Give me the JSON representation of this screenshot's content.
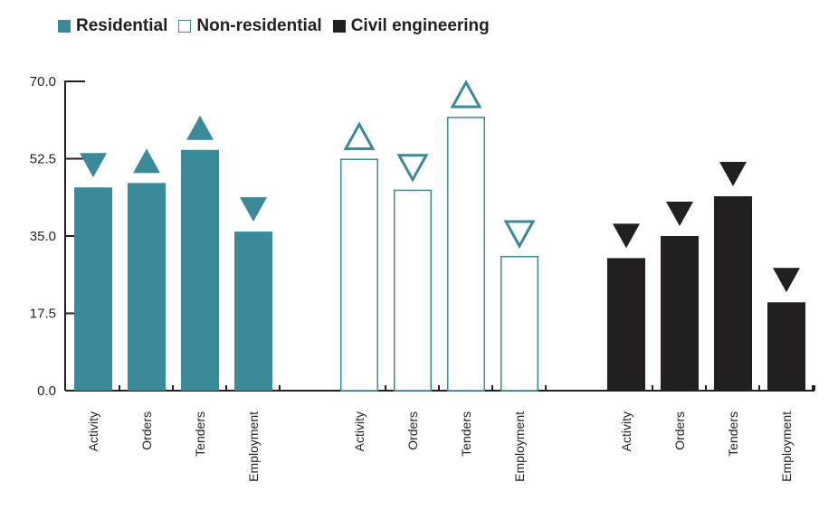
{
  "legend": [
    {
      "label": "Residential",
      "color": "#3a8a9a",
      "style": "filled"
    },
    {
      "label": "Non-residential",
      "color": "#3a8a9a",
      "style": "outline"
    },
    {
      "label": "Civil engineering",
      "color": "#231f20",
      "style": "filled"
    }
  ],
  "chart_data": {
    "type": "bar",
    "categories": [
      "Activity",
      "Orders",
      "Tenders",
      "Employment"
    ],
    "yticks": [
      "0.0",
      "17.5",
      "35.0",
      "52.5",
      "70.0"
    ],
    "ylim": [
      0,
      70
    ],
    "grid": false,
    "legend_position": "top-left",
    "series": [
      {
        "name": "Residential",
        "color": "#3a8a9a",
        "style": "filled",
        "values": [
          46.0,
          47.0,
          54.5,
          36.0
        ],
        "trend": [
          "down",
          "up",
          "up",
          "down"
        ]
      },
      {
        "name": "Non-residential",
        "color": "#3a8a9a",
        "style": "outline",
        "values": [
          52.5,
          45.5,
          62.0,
          30.5
        ],
        "trend": [
          "up",
          "down",
          "up",
          "down"
        ]
      },
      {
        "name": "Civil engineering",
        "color": "#231f20",
        "style": "filled",
        "values": [
          30.0,
          35.0,
          44.0,
          20.0
        ],
        "trend": [
          "down",
          "down",
          "down",
          "down"
        ]
      }
    ]
  }
}
